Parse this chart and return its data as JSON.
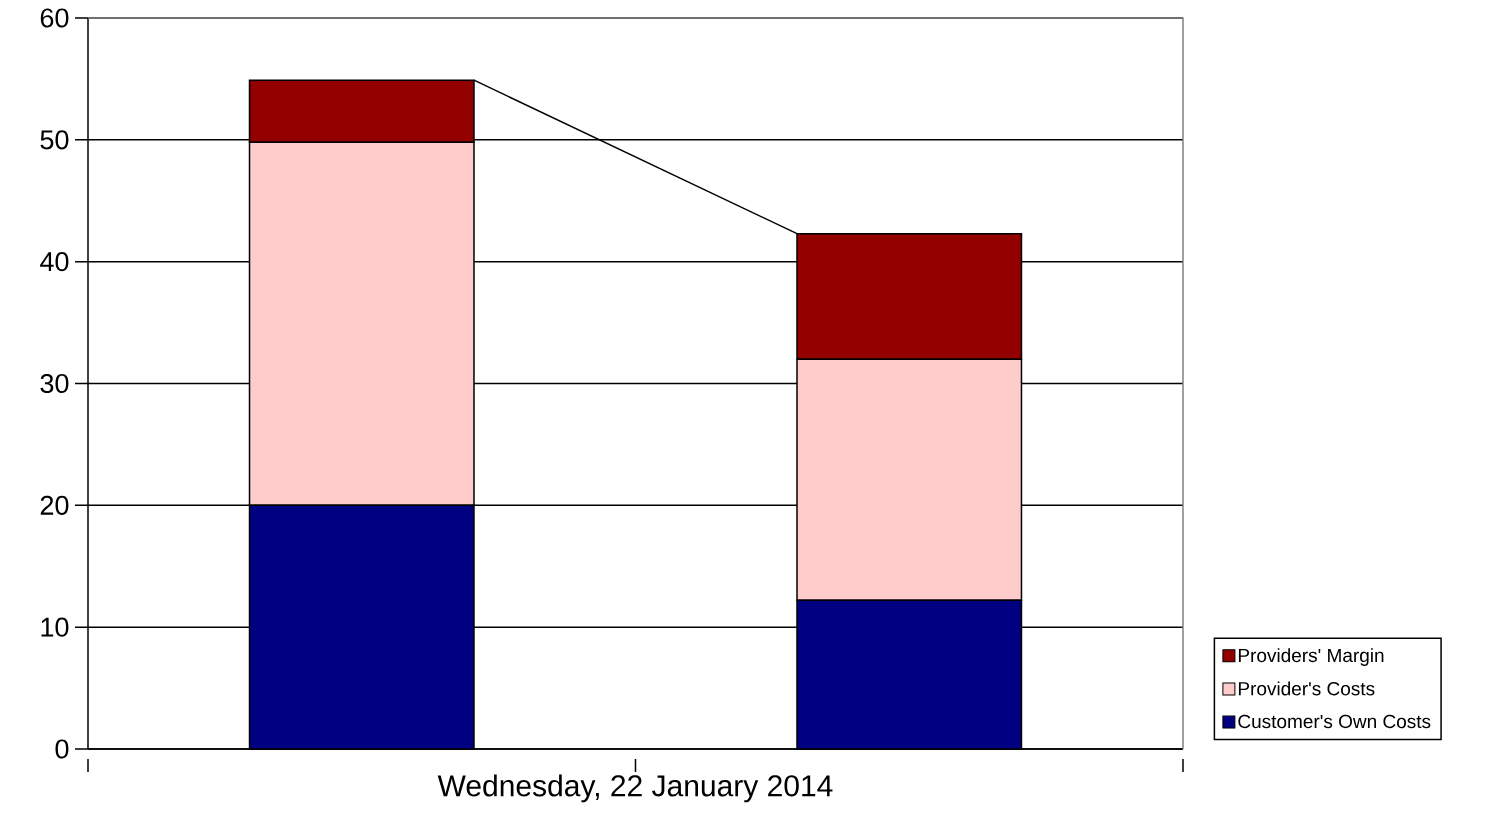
{
  "chart_data": {
    "type": "bar",
    "stacked": true,
    "xlabel": "Wednesday, 22 January 2014",
    "categories": [
      null,
      null
    ],
    "series": [
      {
        "name": "Customer's Own Costs",
        "color": "#000080",
        "values": [
          20,
          12.2
        ]
      },
      {
        "name": "Provider's Costs",
        "color": "#ffcccc",
        "values": [
          29.8,
          19.8
        ]
      },
      {
        "name": "Providers' Margin",
        "color": "#930000",
        "values": [
          5.1,
          10.3
        ]
      }
    ],
    "ylim": [
      0,
      60
    ],
    "yticks": [
      0,
      10,
      20,
      30,
      40,
      50,
      60
    ],
    "grid": "y",
    "legend": "bottom right"
  }
}
